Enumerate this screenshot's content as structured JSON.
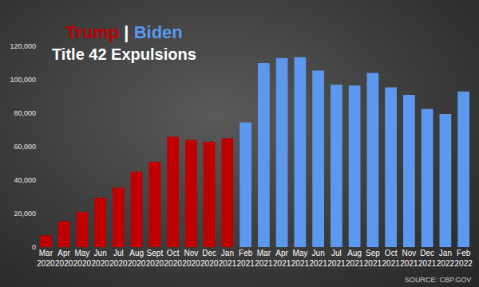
{
  "chart_data": {
    "type": "bar",
    "title": "Trump | Biden",
    "subtitle": "Title 42 Expulsions",
    "source": "SOURCE: CBP.GOV",
    "categories": [
      "Mar 2020",
      "Apr 2020",
      "May 2020",
      "Jun 2020",
      "Jul 2020",
      "Aug 2020",
      "Sept 2020",
      "Oct 2020",
      "Nov 2020",
      "Dec 2020",
      "Jan 2021",
      "Feb 2021",
      "Mar 2021",
      "Apr 2021",
      "May 2021",
      "Jun 2021",
      "Jul 2021",
      "Aug 2021",
      "Sep 2021",
      "Oct 2021",
      "Nov 2021",
      "Dec 2021",
      "Jan 2022",
      "Feb 2022"
    ],
    "series": [
      {
        "name": "Trump",
        "color": "#c00000",
        "values": [
          7000,
          15500,
          21000,
          29500,
          35500,
          45000,
          51000,
          66000,
          64000,
          63000,
          65000,
          null,
          null,
          null,
          null,
          null,
          null,
          null,
          null,
          null,
          null,
          null,
          null,
          null
        ]
      },
      {
        "name": "Biden",
        "color": "#5b98ee",
        "values": [
          null,
          null,
          null,
          null,
          null,
          null,
          null,
          null,
          null,
          null,
          null,
          74500,
          110000,
          113000,
          113500,
          105500,
          97000,
          96500,
          104000,
          95500,
          91000,
          82500,
          79500,
          93000
        ]
      }
    ],
    "ylim": [
      0,
      120000
    ],
    "yticks": [
      0,
      {
        "value": 20000,
        "label": "20,000"
      },
      {
        "value": 40000,
        "label": "40,000"
      },
      {
        "value": 60000,
        "label": "60,000"
      },
      {
        "value": 80000,
        "label": "80,000"
      },
      {
        "value": 100000,
        "label": "100,000"
      },
      {
        "value": 120000,
        "label": "120,000"
      }
    ],
    "grid": false
  }
}
